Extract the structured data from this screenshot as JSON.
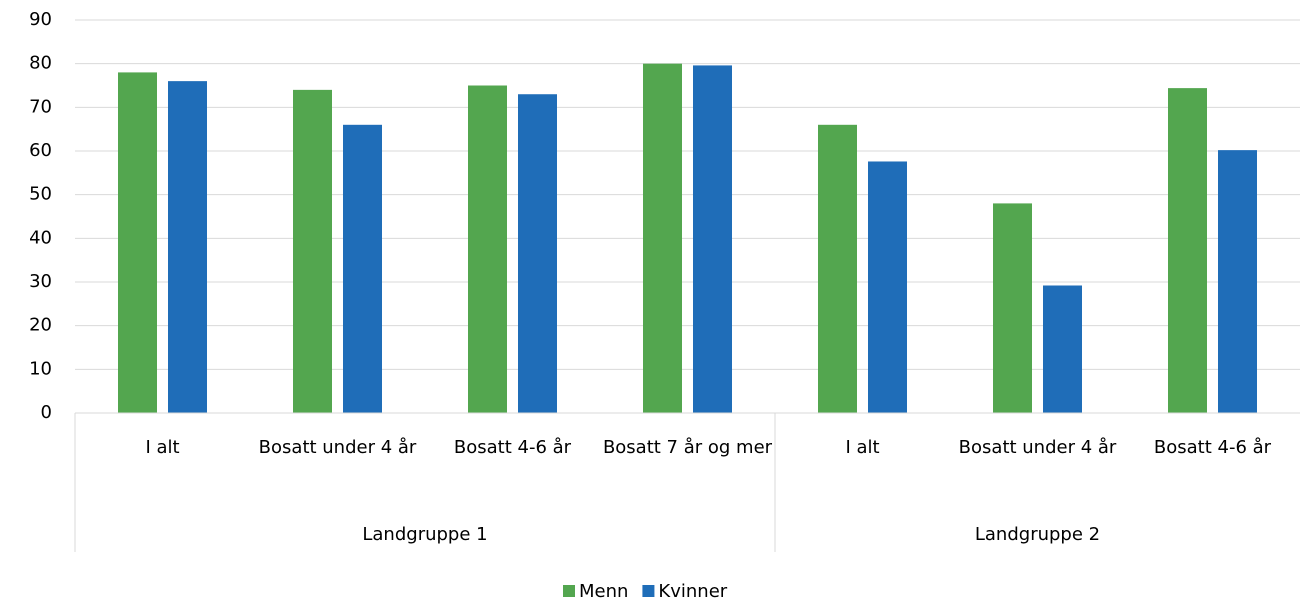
{
  "chart_data": {
    "type": "bar",
    "groups": [
      {
        "name": "Landgruppe 1",
        "categories": [
          "I alt",
          "Bosatt under 4 år",
          "Bosatt 4-6 år",
          "Bosatt 7 år og mer"
        ]
      },
      {
        "name": "Landgruppe 2",
        "categories": [
          "I alt",
          "Bosatt under 4 år",
          "Bosatt 4-6 år"
        ]
      }
    ],
    "series": [
      {
        "name": "Menn",
        "color": "#53a64f",
        "values": [
          78,
          74,
          75,
          80,
          66,
          48,
          74.4
        ]
      },
      {
        "name": "Kvinner",
        "color": "#1f6db8",
        "values": [
          76,
          66,
          73,
          79.6,
          57.6,
          29.2,
          60.2
        ]
      }
    ],
    "ylim": [
      0,
      90
    ],
    "yticks": [
      0,
      10,
      20,
      30,
      40,
      50,
      60,
      70,
      80,
      90
    ],
    "grid": true,
    "legend": "bottom"
  }
}
